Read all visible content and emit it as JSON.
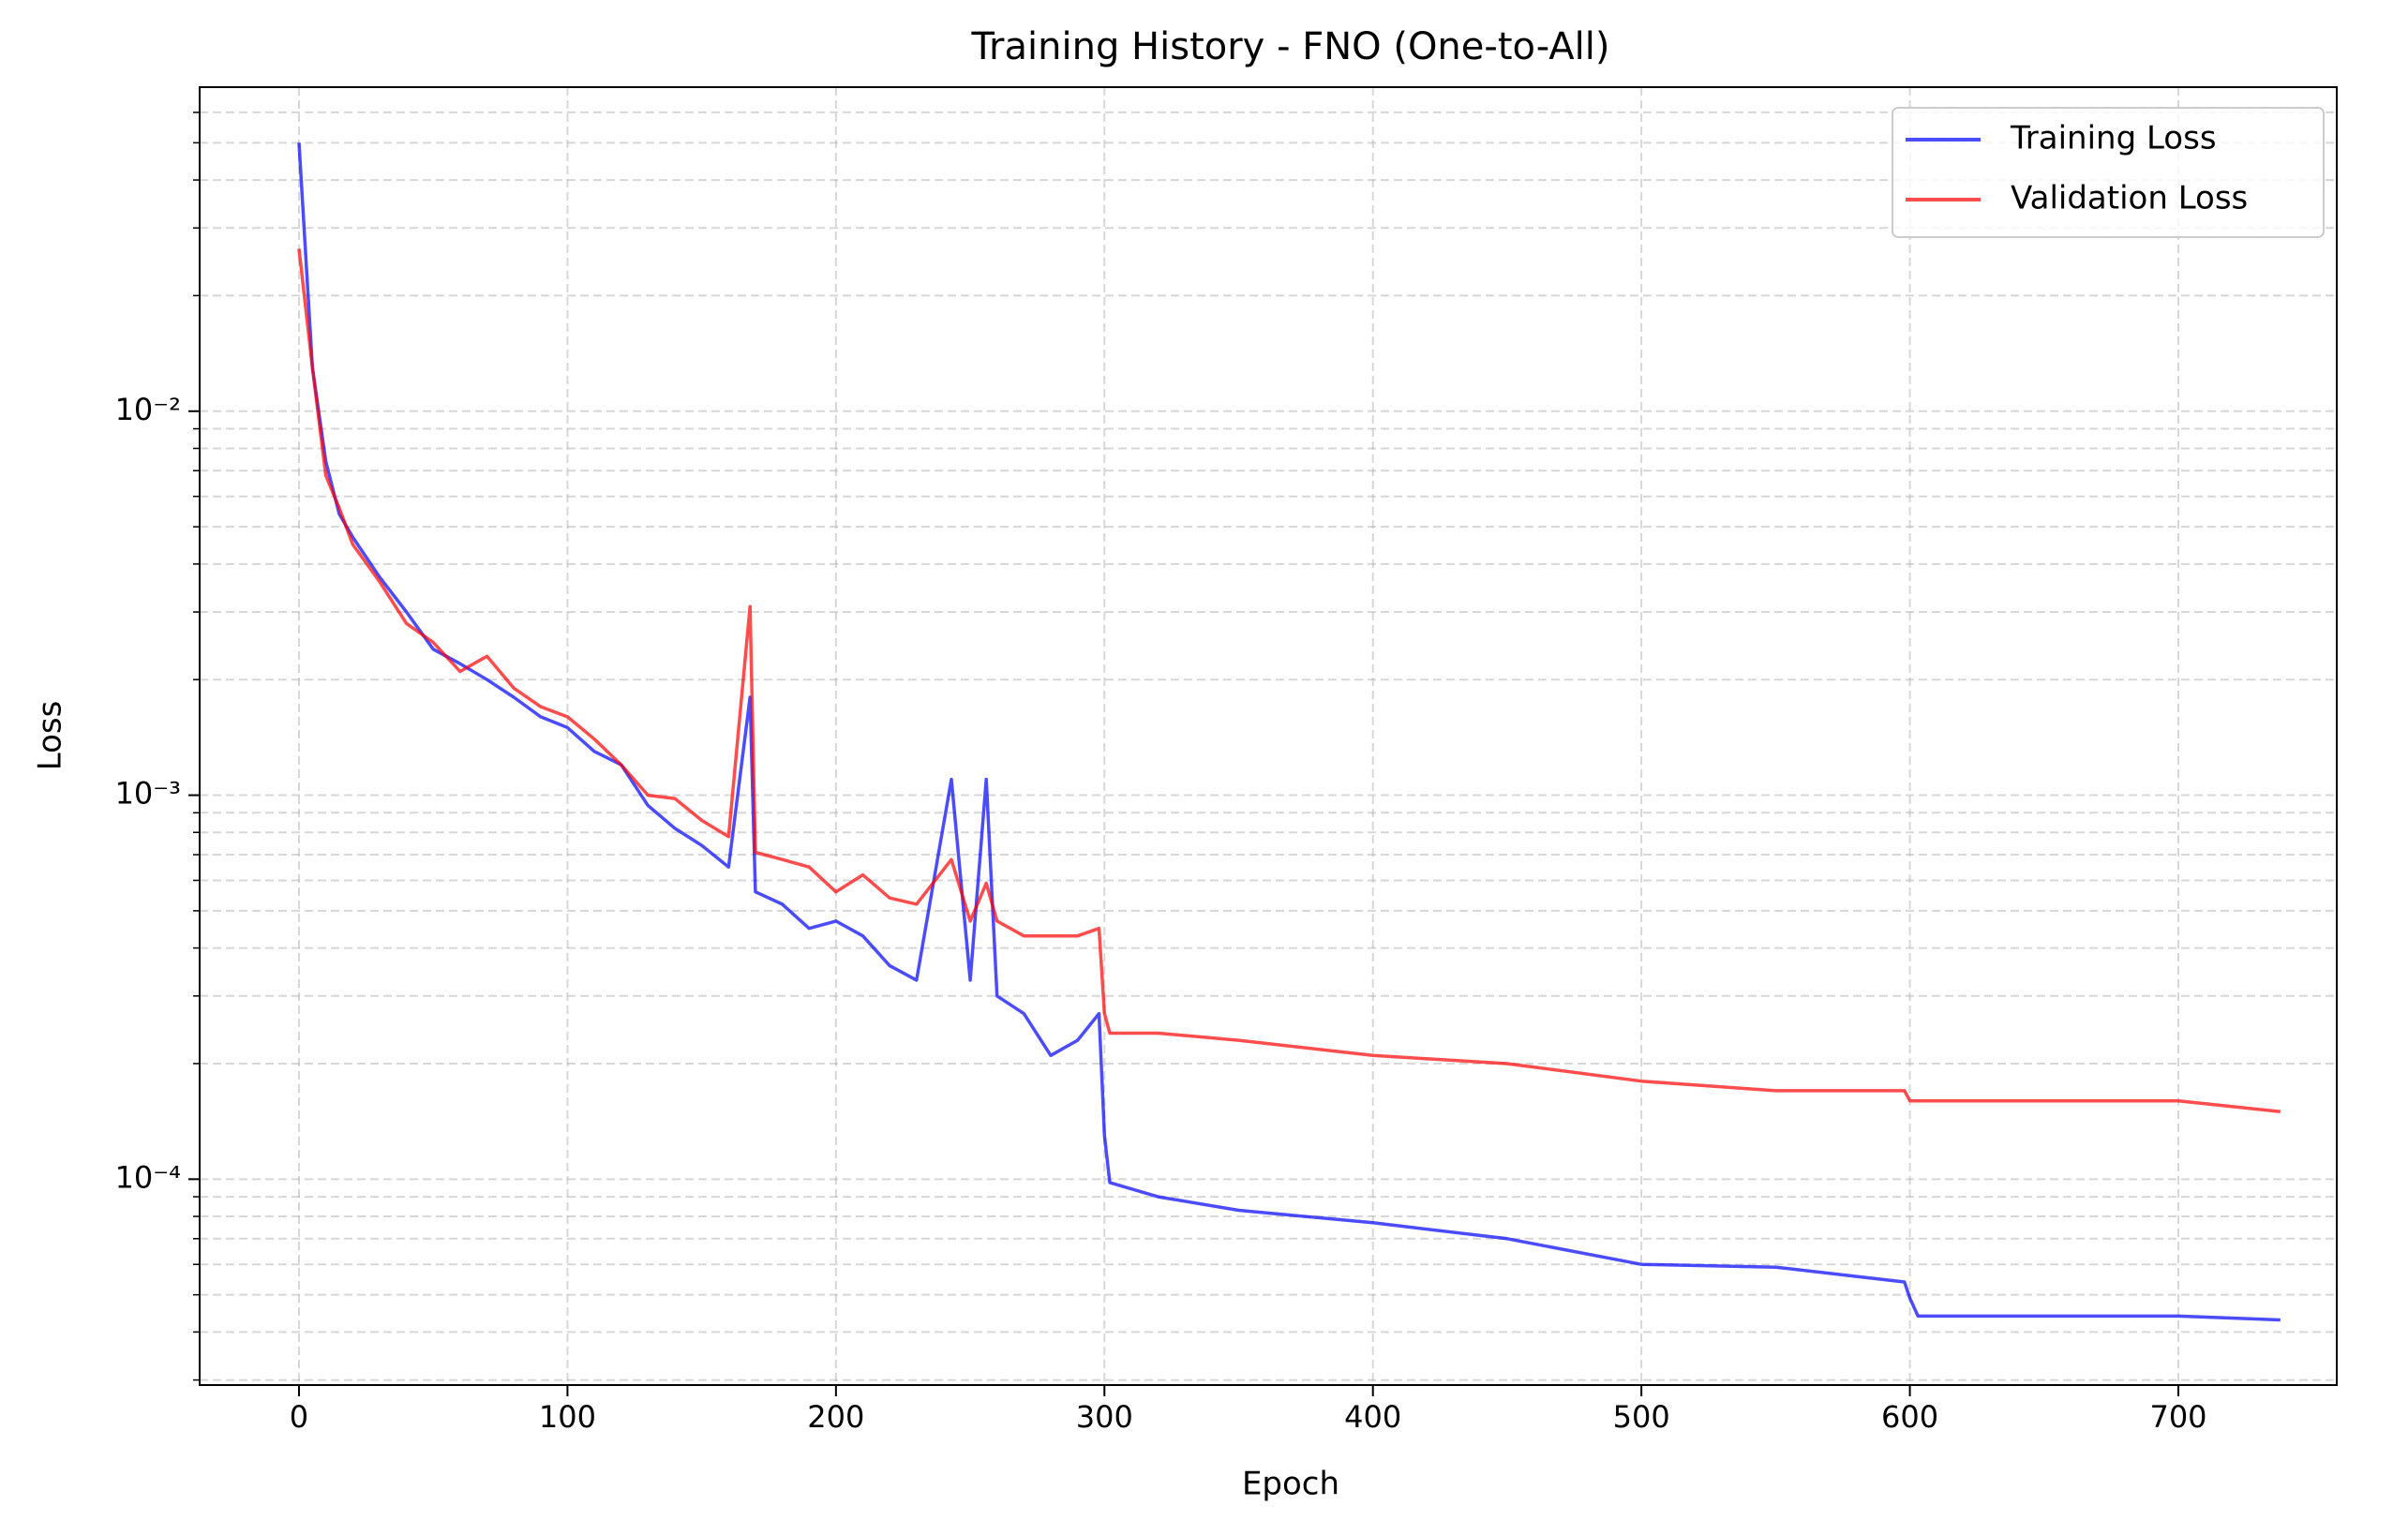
{
  "chart_data": {
    "type": "line",
    "title": "Training History - FNO (One-to-All)",
    "x_label": "Epoch",
    "y_label": "Loss",
    "x": [
      0,
      5,
      10,
      15,
      20,
      30,
      40,
      50,
      60,
      70,
      80,
      90,
      100,
      110,
      120,
      130,
      140,
      150,
      160,
      168,
      170,
      180,
      190,
      200,
      210,
      220,
      230,
      243,
      250,
      256,
      260,
      270,
      280,
      290,
      298,
      300,
      302,
      320,
      350,
      400,
      450,
      500,
      550,
      598,
      600,
      603,
      650,
      700,
      738
    ],
    "series": [
      {
        "name": "Training Loss",
        "color": "#0000ff",
        "values": [
          0.05,
          0.013,
          0.0074,
          0.0054,
          0.0047,
          0.0037,
          0.003,
          0.0024,
          0.0022,
          0.002,
          0.0018,
          0.0016,
          0.0015,
          0.0013,
          0.0012,
          0.00094,
          0.00082,
          0.00074,
          0.00065,
          0.0018,
          0.00056,
          0.00052,
          0.00045,
          0.00047,
          0.00043,
          0.00036,
          0.00033,
          0.0011,
          0.00033,
          0.0011,
          0.0003,
          0.00027,
          0.00021,
          0.00023,
          0.00027,
          0.00013,
          9.8e-05,
          9e-05,
          8.3e-05,
          7.7e-05,
          7e-05,
          6e-05,
          5.9e-05,
          5.4e-05,
          4.9e-05,
          4.4e-05,
          4.4e-05,
          4.4e-05,
          4.3e-05
        ]
      },
      {
        "name": "Validation Loss",
        "color": "#ff0000",
        "values": [
          0.0265,
          0.013,
          0.0068,
          0.0056,
          0.0045,
          0.0036,
          0.0028,
          0.0025,
          0.0021,
          0.0023,
          0.0019,
          0.0017,
          0.0016,
          0.0014,
          0.0012,
          0.001,
          0.00098,
          0.00086,
          0.00078,
          0.0031,
          0.00071,
          0.00068,
          0.00065,
          0.00056,
          0.00062,
          0.00054,
          0.00052,
          0.00068,
          0.00047,
          0.00059,
          0.00047,
          0.00043,
          0.00043,
          0.00043,
          0.00045,
          0.00027,
          0.00024,
          0.00024,
          0.00023,
          0.00021,
          0.0002,
          0.00018,
          0.00017,
          0.00017,
          0.00016,
          0.00016,
          0.00016,
          0.00016,
          0.00015
        ]
      }
    ],
    "alpha": 0.7,
    "xlim": [
      -37,
      759
    ],
    "xticks": [
      0,
      100,
      200,
      300,
      400,
      500,
      600,
      700
    ],
    "ylim": [
      2.91e-05,
      0.0698
    ],
    "log_y": true,
    "yticks": [
      {
        "value": 0.0001,
        "label": "10⁻⁴"
      },
      {
        "value": 0.001,
        "label": "10⁻³"
      },
      {
        "value": 0.01,
        "label": "10⁻²"
      }
    ],
    "yminorticks": [
      3e-05,
      4e-05,
      5e-05,
      6e-05,
      7e-05,
      8e-05,
      9e-05,
      0.0002,
      0.0003,
      0.0004,
      0.0005,
      0.0006,
      0.0007,
      0.0008,
      0.0009,
      0.002,
      0.003,
      0.004,
      0.005,
      0.006,
      0.007,
      0.008,
      0.009,
      0.02,
      0.03,
      0.04,
      0.05,
      0.06
    ],
    "grid": true,
    "legend": "upper right"
  }
}
